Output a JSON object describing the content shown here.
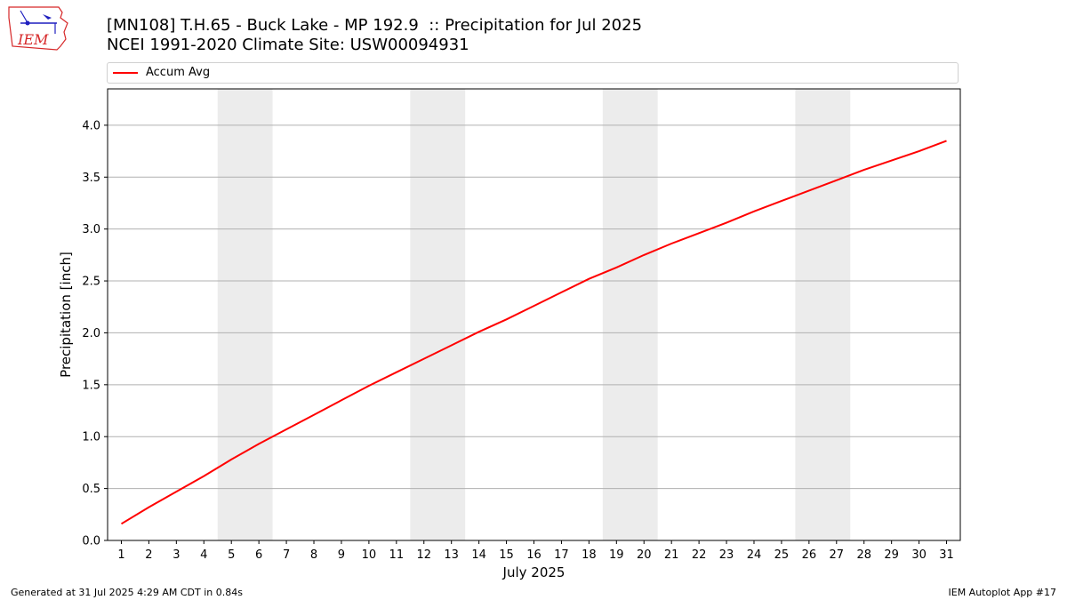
{
  "header": {
    "title_line1": "[MN108] T.H.65 - Buck Lake - MP 192.9  :: Precipitation for Jul 2025",
    "title_line2": "NCEI 1991-2020 Climate Site: USW00094931"
  },
  "logo": {
    "text": "IEM"
  },
  "footer": {
    "left": "Generated at 31 Jul 2025 4:29 AM CDT in 0.84s",
    "right": "IEM Autoplot App #17"
  },
  "colors": {
    "series": "#ff0000",
    "weekend_band": "#ececec",
    "grid": "#b0b0b0",
    "logo_red": "#d62728",
    "logo_blue": "#1f1fbf"
  },
  "chart_data": {
    "type": "line",
    "xlabel": "July 2025",
    "ylabel": "Precipitation [inch]",
    "x": [
      1,
      2,
      3,
      4,
      5,
      6,
      7,
      8,
      9,
      10,
      11,
      12,
      13,
      14,
      15,
      16,
      17,
      18,
      19,
      20,
      21,
      22,
      23,
      24,
      25,
      26,
      27,
      28,
      29,
      30,
      31
    ],
    "xticks": [
      "1",
      "2",
      "3",
      "4",
      "5",
      "6",
      "7",
      "8",
      "9",
      "10",
      "11",
      "12",
      "13",
      "14",
      "15",
      "16",
      "17",
      "18",
      "19",
      "20",
      "21",
      "22",
      "23",
      "24",
      "25",
      "26",
      "27",
      "28",
      "29",
      "30",
      "31"
    ],
    "xlim": [
      0.5,
      31.5
    ],
    "ylim": [
      0,
      4.35
    ],
    "yticks": [
      "0.0",
      "0.5",
      "1.0",
      "1.5",
      "2.0",
      "2.5",
      "3.0",
      "3.5",
      "4.0"
    ],
    "grid": "horizontal",
    "legend": "top",
    "weekend_bands": [
      [
        5,
        6
      ],
      [
        12,
        13
      ],
      [
        19,
        20
      ],
      [
        26,
        27
      ]
    ],
    "series": [
      {
        "name": "Accum Avg",
        "values": [
          0.16,
          0.32,
          0.47,
          0.62,
          0.78,
          0.93,
          1.07,
          1.21,
          1.35,
          1.49,
          1.62,
          1.75,
          1.88,
          2.01,
          2.13,
          2.26,
          2.39,
          2.52,
          2.63,
          2.75,
          2.86,
          2.96,
          3.06,
          3.17,
          3.27,
          3.37,
          3.47,
          3.57,
          3.66,
          3.75,
          3.85
        ]
      }
    ]
  }
}
